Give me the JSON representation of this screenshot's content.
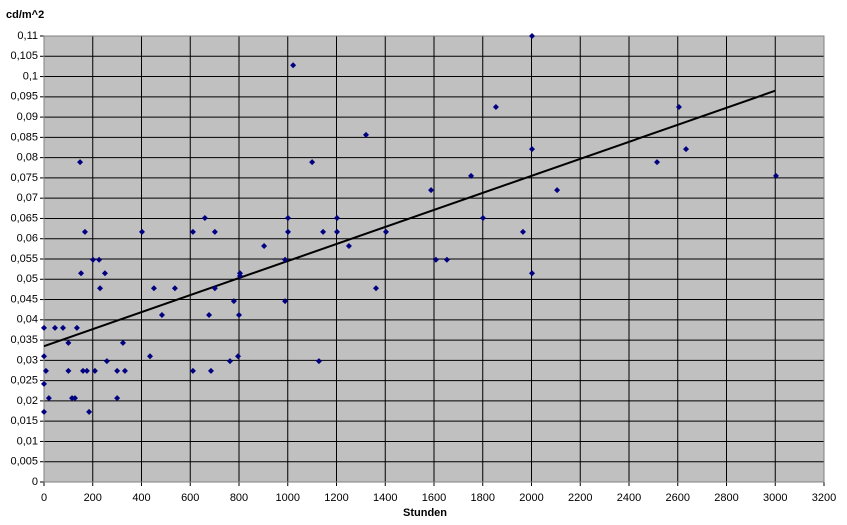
{
  "chart_data": {
    "type": "scatter",
    "y_label": "cd/m^2",
    "x_label": "Stunden",
    "x": [
      0,
      0,
      8,
      0,
      20,
      0,
      45,
      78,
      100,
      100,
      115,
      127,
      135,
      148,
      152,
      160,
      168,
      176,
      185,
      201,
      209,
      226,
      230,
      250,
      258,
      300,
      300,
      324,
      332,
      402,
      435,
      451,
      484,
      537,
      611,
      611,
      660,
      677,
      685,
      701,
      701,
      763,
      779,
      796,
      800,
      804,
      804,
      903,
      989,
      989,
      1001,
      1001,
      1022,
      1100,
      1128,
      1145,
      1202,
      1202,
      1251,
      1321,
      1362,
      1403,
      1588,
      1608,
      1653,
      1752,
      1801,
      1854,
      1965,
      2002,
      2002,
      2002,
      2105,
      2515,
      2605,
      2634,
      3003
    ],
    "values": [
      0.038,
      0.031,
      0.0274,
      0.0242,
      0.0207,
      0.0173,
      0.038,
      0.038,
      0.0343,
      0.0274,
      0.0207,
      0.0207,
      0.038,
      0.0789,
      0.0515,
      0.0274,
      0.0617,
      0.0274,
      0.0173,
      0.0548,
      0.0274,
      0.0548,
      0.0478,
      0.0515,
      0.0298,
      0.0207,
      0.0274,
      0.0343,
      0.0274,
      0.0617,
      0.031,
      0.0478,
      0.0412,
      0.0478,
      0.0617,
      0.0274,
      0.0651,
      0.0412,
      0.0274,
      0.0617,
      0.0478,
      0.0298,
      0.0446,
      0.031,
      0.0412,
      0.0515,
      0.0508,
      0.0582,
      0.0446,
      0.0548,
      0.0651,
      0.0617,
      0.1028,
      0.0789,
      0.0298,
      0.0617,
      0.0651,
      0.0617,
      0.0582,
      0.0856,
      0.0478,
      0.0617,
      0.072,
      0.0548,
      0.0548,
      0.0755,
      0.0651,
      0.0925,
      0.0617,
      0.11,
      0.0821,
      0.0515,
      0.072,
      0.0789,
      0.0925,
      0.0821,
      0.0755
    ],
    "color": "#000080",
    "trendline": {
      "x": [
        0,
        3000
      ],
      "values": [
        0.0335,
        0.0965
      ],
      "color": "#000000"
    },
    "xlim": [
      0,
      3200
    ],
    "ylim": [
      0,
      0.11
    ],
    "xticks": [
      0,
      200,
      400,
      600,
      800,
      1000,
      1200,
      1400,
      1600,
      1800,
      2000,
      2200,
      2400,
      2600,
      2800,
      3000,
      3200
    ],
    "yticks": [
      0,
      {
        "value": 0.005,
        "label": "0,005"
      },
      {
        "value": 0.01,
        "label": "0,01"
      },
      {
        "value": 0.015,
        "label": "0,015"
      },
      {
        "value": 0.02,
        "label": "0,02"
      },
      {
        "value": 0.025,
        "label": "0,025"
      },
      {
        "value": 0.03,
        "label": "0,03"
      },
      {
        "value": 0.035,
        "label": "0,035"
      },
      {
        "value": 0.04,
        "label": "0,04"
      },
      {
        "value": 0.045,
        "label": "0,045"
      },
      {
        "value": 0.05,
        "label": "0,05"
      },
      {
        "value": 0.055,
        "label": "0,055"
      },
      {
        "value": 0.06,
        "label": "0,06"
      },
      {
        "value": 0.065,
        "label": "0,065"
      },
      {
        "value": 0.07,
        "label": "0,07"
      },
      {
        "value": 0.075,
        "label": "0,075"
      },
      {
        "value": 0.08,
        "label": "0,08"
      },
      {
        "value": 0.085,
        "label": "0,085"
      },
      {
        "value": 0.09,
        "label": "0,09"
      },
      {
        "value": 0.095,
        "label": "0,095"
      },
      {
        "value": 0.1,
        "label": "0,1"
      },
      {
        "value": 0.105,
        "label": "0,105"
      },
      {
        "value": 0.11,
        "label": "0,11"
      }
    ],
    "grid": true,
    "plot_background": "#c0c0c0"
  }
}
